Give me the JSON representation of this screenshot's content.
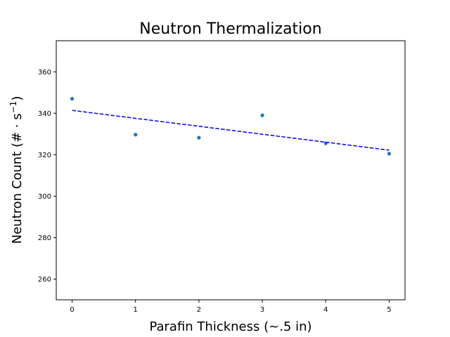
{
  "chart_data": {
    "type": "scatter",
    "title": "Neutron Thermalization",
    "xlabel": "Parafin Thickness (~.5 in)",
    "ylabel_main": "Neutron Count (# · s",
    "ylabel_sup": "−1",
    "ylabel_close": ")",
    "xlim": [
      -0.25,
      5.25
    ],
    "ylim": [
      250,
      375
    ],
    "xticks": [
      0,
      1,
      2,
      3,
      4,
      5
    ],
    "yticks": [
      260,
      280,
      300,
      320,
      340,
      360
    ],
    "grid": false,
    "series": [
      {
        "type": "scatter",
        "color": "#1f77b4",
        "x": [
          0,
          1,
          2,
          3,
          4,
          5
        ],
        "y": [
          347,
          329.7,
          328.2,
          339,
          325.5,
          320.5
        ]
      },
      {
        "type": "line",
        "style": "dashed",
        "color": "#0000ff",
        "x": [
          0,
          5
        ],
        "y": [
          341.4,
          322.2
        ]
      }
    ]
  }
}
